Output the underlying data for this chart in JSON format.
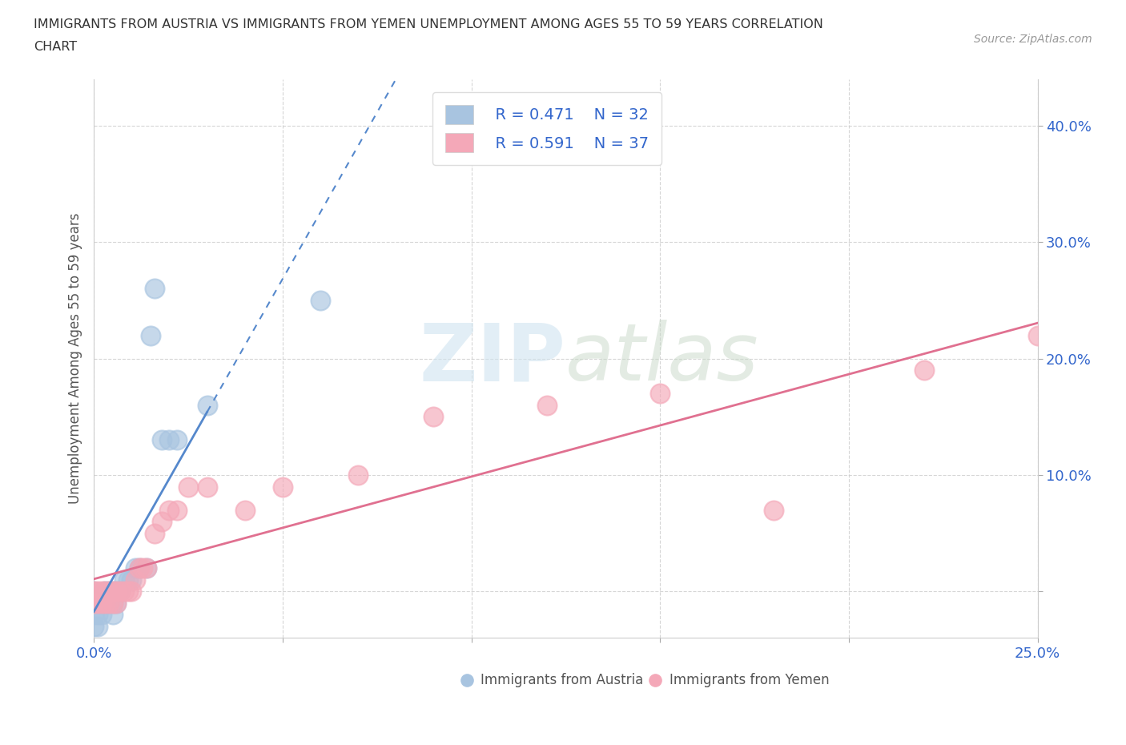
{
  "title_line1": "IMMIGRANTS FROM AUSTRIA VS IMMIGRANTS FROM YEMEN UNEMPLOYMENT AMONG AGES 55 TO 59 YEARS CORRELATION",
  "title_line2": "CHART",
  "source_text": "Source: ZipAtlas.com",
  "ylabel": "Unemployment Among Ages 55 to 59 years",
  "xlim": [
    0.0,
    0.25
  ],
  "ylim": [
    -0.04,
    0.44
  ],
  "xticks": [
    0.0,
    0.05,
    0.1,
    0.15,
    0.2,
    0.25
  ],
  "xticklabels": [
    "0.0%",
    "",
    "",
    "",
    "",
    "25.0%"
  ],
  "yticks": [
    0.0,
    0.1,
    0.2,
    0.3,
    0.4
  ],
  "yticklabels": [
    "",
    "10.0%",
    "20.0%",
    "30.0%",
    "40.0%"
  ],
  "austria_color": "#a8c4e0",
  "yemen_color": "#f4a8b8",
  "austria_line_color": "#5588cc",
  "yemen_line_color": "#e07090",
  "legend_R_austria": "R = 0.471",
  "legend_N_austria": "N = 32",
  "legend_R_yemen": "R = 0.591",
  "legend_N_yemen": "N = 37",
  "watermark_zip": "ZIP",
  "watermark_atlas": "atlas",
  "legend_label_austria": "Immigrants from Austria",
  "legend_label_yemen": "Immigrants from Yemen",
  "austria_x": [
    0.0,
    0.0,
    0.0,
    0.0,
    0.001,
    0.001,
    0.001,
    0.002,
    0.002,
    0.003,
    0.003,
    0.004,
    0.004,
    0.005,
    0.005,
    0.005,
    0.006,
    0.006,
    0.007,
    0.008,
    0.009,
    0.01,
    0.011,
    0.012,
    0.014,
    0.015,
    0.016,
    0.018,
    0.02,
    0.022,
    0.03,
    0.06
  ],
  "austria_y": [
    0.0,
    -0.01,
    -0.02,
    -0.03,
    -0.01,
    -0.02,
    -0.03,
    -0.01,
    -0.02,
    0.0,
    -0.01,
    0.0,
    -0.01,
    0.0,
    -0.01,
    -0.02,
    0.0,
    -0.01,
    0.0,
    0.01,
    0.01,
    0.01,
    0.02,
    0.02,
    0.02,
    0.22,
    0.26,
    0.13,
    0.13,
    0.13,
    0.16,
    0.25
  ],
  "yemen_x": [
    0.0,
    0.0,
    0.001,
    0.001,
    0.002,
    0.002,
    0.003,
    0.003,
    0.004,
    0.004,
    0.005,
    0.005,
    0.006,
    0.006,
    0.007,
    0.008,
    0.009,
    0.01,
    0.011,
    0.012,
    0.013,
    0.014,
    0.016,
    0.018,
    0.02,
    0.022,
    0.025,
    0.03,
    0.04,
    0.05,
    0.07,
    0.09,
    0.12,
    0.15,
    0.18,
    0.22,
    0.25
  ],
  "yemen_y": [
    0.0,
    -0.01,
    0.0,
    -0.01,
    0.0,
    -0.01,
    0.0,
    -0.01,
    0.0,
    -0.01,
    0.0,
    -0.01,
    0.0,
    -0.01,
    0.0,
    0.0,
    0.0,
    0.0,
    0.01,
    0.02,
    0.02,
    0.02,
    0.05,
    0.06,
    0.07,
    0.07,
    0.09,
    0.09,
    0.07,
    0.09,
    0.1,
    0.15,
    0.16,
    0.17,
    0.07,
    0.19,
    0.22
  ],
  "background_color": "#ffffff",
  "grid_color": "#cccccc"
}
